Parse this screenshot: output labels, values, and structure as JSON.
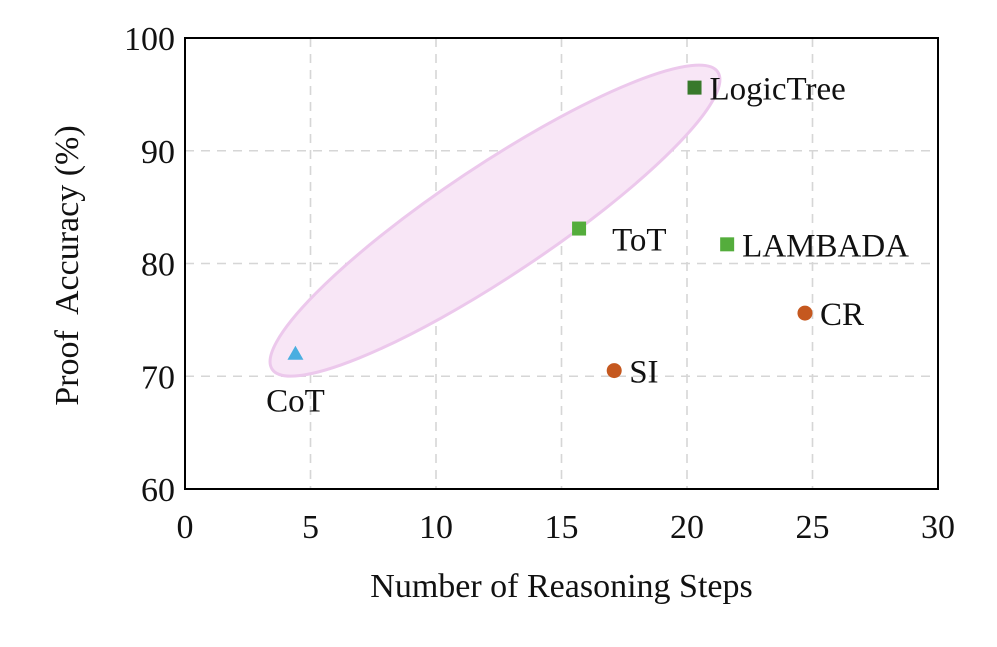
{
  "chart_data": {
    "type": "scatter",
    "title": "",
    "xlabel": "Number of Reasoning Steps",
    "ylabel": "Proof  Accuracy (%)",
    "xlim": [
      0,
      30
    ],
    "ylim": [
      60,
      100
    ],
    "xticks": [
      0,
      5,
      10,
      15,
      20,
      25,
      30
    ],
    "yticks": [
      60,
      70,
      80,
      90,
      100
    ],
    "grid": true,
    "points": [
      {
        "label": "CoT",
        "x": 4.4,
        "y": 72.0,
        "marker": "triangle",
        "color": "#4aaee0",
        "label_position": "below"
      },
      {
        "label": "ToT",
        "x": 15.7,
        "y": 83.1,
        "marker": "square",
        "color": "#54ad3c",
        "label_position": "right-below"
      },
      {
        "label": "LogicTree",
        "x": 20.3,
        "y": 95.6,
        "marker": "square",
        "color": "#38792b",
        "label_position": "right"
      },
      {
        "label": "LAMBADA",
        "x": 21.6,
        "y": 81.7,
        "marker": "square",
        "color": "#54ad3c",
        "label_position": "right"
      },
      {
        "label": "SI",
        "x": 17.1,
        "y": 70.5,
        "marker": "circle",
        "color": "#c5581f",
        "label_position": "right"
      },
      {
        "label": "CR",
        "x": 24.7,
        "y": 75.6,
        "marker": "circle",
        "color": "#c5581f",
        "label_position": "right"
      }
    ],
    "highlight_region": {
      "shape": "ellipse",
      "encloses": [
        "CoT",
        "ToT",
        "LogicTree"
      ],
      "fill": "#f8e6f6",
      "stroke": "#ecc8ec"
    }
  }
}
